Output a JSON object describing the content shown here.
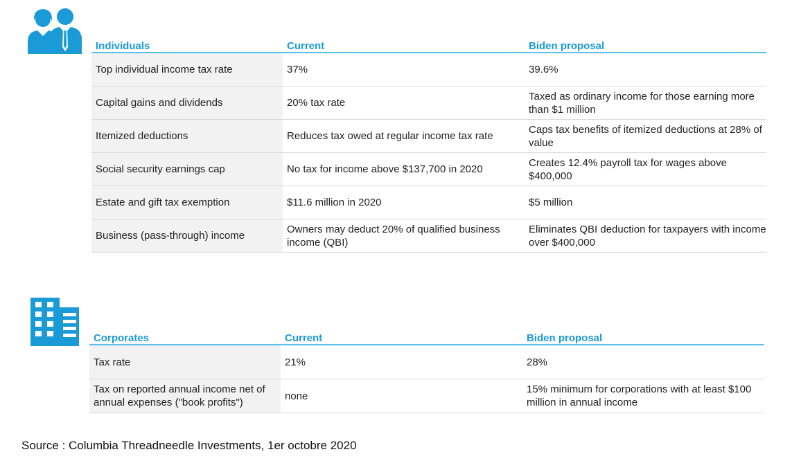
{
  "colors": {
    "accent": "#1a9ad6",
    "header_rule": "#5bc0ea",
    "first_col_bg": "#f2f2f2"
  },
  "individuals": {
    "icon": "people-icon",
    "headers": [
      "Individuals",
      "Current",
      "Biden proposal"
    ],
    "rows": [
      [
        "Top individual income tax rate",
        "37%",
        "39.6%"
      ],
      [
        "Capital gains and dividends",
        "20% tax rate",
        "Taxed as ordinary income for those earning more than $1 million"
      ],
      [
        "Itemized deductions",
        "Reduces tax owed at regular income tax rate",
        "Caps tax benefits of itemized deductions at 28% of value"
      ],
      [
        "Social security earnings cap",
        "No tax for income above $137,700 in 2020",
        "Creates 12.4% payroll tax for wages above $400,000"
      ],
      [
        "Estate and gift tax exemption",
        "$11.6 million in 2020",
        "$5 million"
      ],
      [
        "Business (pass-through) income",
        "Owners may deduct 20% of qualified business income (QBI)",
        "Eliminates QBI deduction for taxpayers with income over $400,000"
      ]
    ]
  },
  "corporates": {
    "icon": "building-icon",
    "headers": [
      "Corporates",
      "Current",
      "Biden proposal"
    ],
    "rows": [
      [
        "Tax rate",
        "21%",
        "28%"
      ],
      [
        "Tax on reported annual income net of annual expenses (\"book profits\")",
        "none",
        "15% minimum for corporations with at least $100 million in annual income"
      ]
    ]
  },
  "source": "Source : Columbia Threadneedle Investments, 1er octobre 2020"
}
